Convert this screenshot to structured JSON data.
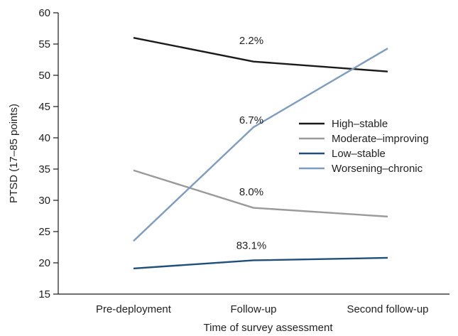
{
  "chart_data": {
    "type": "line",
    "title": "",
    "xlabel": "Time of survey assessment",
    "ylabel": "PTSD (17–85 points)",
    "categories": [
      "Pre-deployment",
      "Follow-up",
      "Second follow-up"
    ],
    "ylim": [
      15,
      60
    ],
    "yticks": [
      15,
      20,
      25,
      30,
      35,
      40,
      45,
      50,
      55,
      60
    ],
    "grid": false,
    "legend_position": "right",
    "series": [
      {
        "name": "High–stable",
        "color": "#1a1a1a",
        "values": [
          56.0,
          52.2,
          50.6
        ]
      },
      {
        "name": "Moderate–improving",
        "color": "#9a9a9a",
        "values": [
          34.8,
          28.8,
          27.4
        ]
      },
      {
        "name": "Low–stable",
        "color": "#1f4f7a",
        "values": [
          19.1,
          20.4,
          20.8
        ]
      },
      {
        "name": "Worsening–chronic",
        "color": "#7d9cc0",
        "values": [
          23.5,
          41.7,
          54.3
        ]
      }
    ],
    "annotations": [
      {
        "text": "2.2%",
        "category": "Follow-up",
        "y": 55.0
      },
      {
        "text": "6.7%",
        "category": "Follow-up",
        "y": 42.3
      },
      {
        "text": "8.0%",
        "category": "Follow-up",
        "y": 30.8
      },
      {
        "text": "83.1%",
        "category": "Follow-up",
        "y": 22.2
      }
    ]
  }
}
